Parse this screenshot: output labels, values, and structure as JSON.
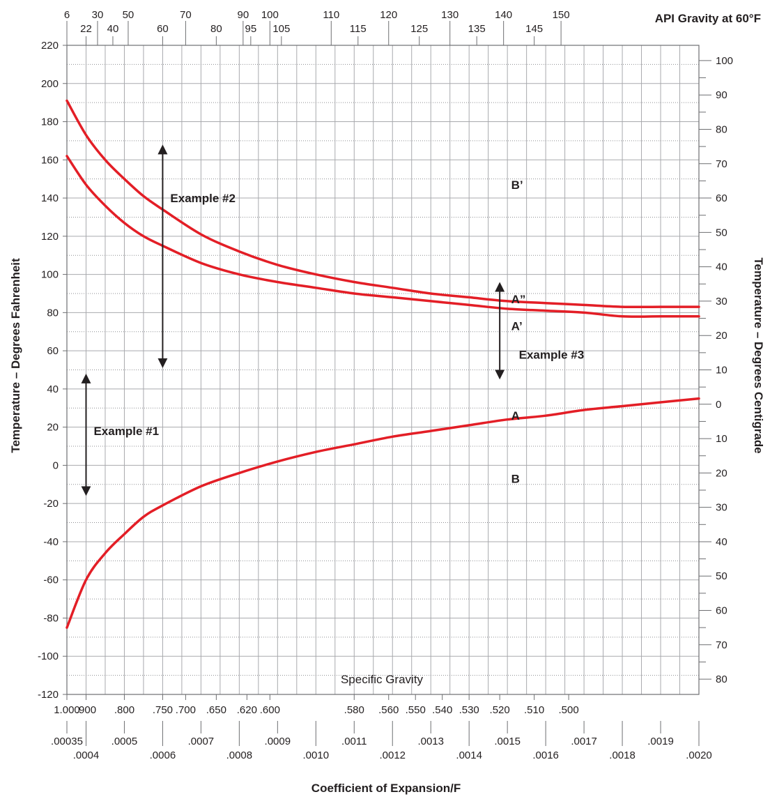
{
  "chart_data": {
    "type": "line",
    "title": "",
    "xlabel": "Coefficient of Expansion/F",
    "ylabel": "Temperature – Degrees Fahrenheit",
    "ylabel_right": "Temperature – Degrees Centigrade",
    "xlabel_top": "API Gravity at 60°F",
    "specific_gravity_title": "Specific Gravity",
    "xlim": [
      0.00035,
      0.002
    ],
    "ylim": [
      -120,
      220
    ],
    "grid": true,
    "y_ticks": [
      220,
      200,
      180,
      160,
      140,
      120,
      100,
      80,
      60,
      40,
      20,
      0,
      -20,
      -40,
      -60,
      -80,
      -100,
      -120
    ],
    "y_right_ticks": [
      {
        "label": "100",
        "f": 212
      },
      {
        "label": "90",
        "f": 194
      },
      {
        "label": "80",
        "f": 176
      },
      {
        "label": "70",
        "f": 158
      },
      {
        "label": "60",
        "f": 140
      },
      {
        "label": "50",
        "f": 122
      },
      {
        "label": "40",
        "f": 104
      },
      {
        "label": "30",
        "f": 86
      },
      {
        "label": "20",
        "f": 68
      },
      {
        "label": "10",
        "f": 50
      },
      {
        "label": "0",
        "f": 32
      },
      {
        "label": "10",
        "f": 14
      },
      {
        "label": "20",
        "f": -4
      },
      {
        "label": "30",
        "f": -22
      },
      {
        "label": "40",
        "f": -40
      },
      {
        "label": "50",
        "f": -58
      },
      {
        "label": "60",
        "f": -76
      },
      {
        "label": "70",
        "f": -94
      },
      {
        "label": "80",
        "f": -112
      }
    ],
    "coef_ticks_upper": [
      {
        "label": ".00035",
        "x": 0.00035
      },
      {
        "label": ".0005",
        "x": 0.0005
      },
      {
        "label": ".0007",
        "x": 0.0007
      },
      {
        "label": ".0009",
        "x": 0.0009
      },
      {
        "label": ".0011",
        "x": 0.0011
      },
      {
        "label": ".0013",
        "x": 0.0013
      },
      {
        "label": ".0015",
        "x": 0.0015
      },
      {
        "label": ".0017",
        "x": 0.0017
      },
      {
        "label": ".0019",
        "x": 0.0019
      }
    ],
    "coef_ticks_lower": [
      {
        "label": ".0004",
        "x": 0.0004
      },
      {
        "label": ".0006",
        "x": 0.0006
      },
      {
        "label": ".0008",
        "x": 0.0008
      },
      {
        "label": ".0010",
        "x": 0.001
      },
      {
        "label": ".0012",
        "x": 0.0012
      },
      {
        "label": ".0014",
        "x": 0.0014
      },
      {
        "label": ".0016",
        "x": 0.0016
      },
      {
        "label": ".0018",
        "x": 0.0018
      },
      {
        "label": ".0020",
        "x": 0.002
      }
    ],
    "specific_gravity_ticks": [
      {
        "label": "1.000",
        "x": 0.00035
      },
      {
        "label": ".900",
        "x": 0.0004
      },
      {
        "label": ".800",
        "x": 0.0005
      },
      {
        "label": ".750",
        "x": 0.0006
      },
      {
        "label": ".700",
        "x": 0.00066
      },
      {
        "label": ".650",
        "x": 0.00074
      },
      {
        "label": ".620",
        "x": 0.00082
      },
      {
        "label": ".600",
        "x": 0.00088
      },
      {
        "label": ".580",
        "x": 0.0011
      },
      {
        "label": ".560",
        "x": 0.00119
      },
      {
        "label": ".550",
        "x": 0.00126
      },
      {
        "label": ".540",
        "x": 0.00133
      },
      {
        "label": ".530",
        "x": 0.0014
      },
      {
        "label": ".520",
        "x": 0.00148
      },
      {
        "label": ".510",
        "x": 0.00157
      },
      {
        "label": ".500",
        "x": 0.00166
      }
    ],
    "api_ticks_upper": [
      {
        "label": "6",
        "x": 0.00035
      },
      {
        "label": "30",
        "x": 0.00043
      },
      {
        "label": "50",
        "x": 0.00051
      },
      {
        "label": "70",
        "x": 0.00066
      },
      {
        "label": "90",
        "x": 0.00081
      },
      {
        "label": "100",
        "x": 0.00088
      },
      {
        "label": "110",
        "x": 0.00104
      },
      {
        "label": "120",
        "x": 0.00119
      },
      {
        "label": "130",
        "x": 0.00135
      },
      {
        "label": "140",
        "x": 0.00149
      },
      {
        "label": "150",
        "x": 0.00164
      }
    ],
    "api_ticks_lower": [
      {
        "label": "22",
        "x": 0.0004
      },
      {
        "label": "40",
        "x": 0.00047
      },
      {
        "label": "60",
        "x": 0.0006
      },
      {
        "label": "80",
        "x": 0.00074
      },
      {
        "label": "95",
        "x": 0.00083
      },
      {
        "label": "105",
        "x": 0.00091
      },
      {
        "label": "115",
        "x": 0.00111
      },
      {
        "label": "125",
        "x": 0.00127
      },
      {
        "label": "135",
        "x": 0.00142
      },
      {
        "label": "145",
        "x": 0.00157
      }
    ],
    "series": [
      {
        "name": "",
        "color": "#e31e26",
        "x": [
          0.00035,
          0.0004,
          0.00045,
          0.0005,
          0.00055,
          0.0006,
          0.0007,
          0.0008,
          0.0009,
          0.001,
          0.0011,
          0.0012,
          0.0013,
          0.0014,
          0.0015,
          0.0016,
          0.0017,
          0.0018,
          0.0019,
          0.002
        ],
        "y": [
          191,
          173,
          160,
          150,
          141,
          134,
          121,
          112,
          105,
          100,
          96,
          93,
          90,
          88,
          86,
          85,
          84,
          83,
          83,
          83
        ]
      },
      {
        "name": "",
        "color": "#e31e26",
        "x": [
          0.00035,
          0.0004,
          0.00045,
          0.0005,
          0.00055,
          0.0006,
          0.0007,
          0.0008,
          0.0009,
          0.001,
          0.0011,
          0.0012,
          0.0013,
          0.0014,
          0.0015,
          0.0016,
          0.0017,
          0.0018,
          0.0019,
          0.002
        ],
        "y": [
          162,
          147,
          136,
          127,
          120,
          115,
          106,
          100,
          96,
          93,
          90,
          88,
          86,
          84,
          82,
          81,
          80,
          78,
          78,
          78
        ]
      },
      {
        "name": "",
        "color": "#e31e26",
        "x": [
          0.00035,
          0.0004,
          0.00045,
          0.0005,
          0.00055,
          0.0006,
          0.0007,
          0.0008,
          0.0009,
          0.001,
          0.0011,
          0.0012,
          0.0013,
          0.0014,
          0.0015,
          0.0016,
          0.0017,
          0.0018,
          0.0019,
          0.002
        ],
        "y": [
          -85,
          -60,
          -46,
          -36,
          -27,
          -21,
          -11,
          -4,
          2,
          7,
          11,
          15,
          18,
          21,
          24,
          26,
          29,
          31,
          33,
          35
        ]
      }
    ],
    "annotations": [
      {
        "text": "Example #1",
        "x": 0.00042,
        "y": 18
      },
      {
        "text": "Example #2",
        "x": 0.00062,
        "y": 140
      },
      {
        "text": "Example #3",
        "x": 0.00153,
        "y": 58
      },
      {
        "text": "B’",
        "x": 0.00151,
        "y": 147
      },
      {
        "text": "A”",
        "x": 0.00151,
        "y": 87
      },
      {
        "text": "A’",
        "x": 0.00151,
        "y": 73
      },
      {
        "text": "A",
        "x": 0.00151,
        "y": 26
      },
      {
        "text": "B",
        "x": 0.00151,
        "y": -7
      }
    ],
    "arrows": [
      {
        "x": 0.0004,
        "y_from": -15,
        "y_to": 47
      },
      {
        "x": 0.0006,
        "y_from": 52,
        "y_to": 167
      },
      {
        "x": 0.00148,
        "y_from": 46,
        "y_to": 95
      }
    ]
  }
}
